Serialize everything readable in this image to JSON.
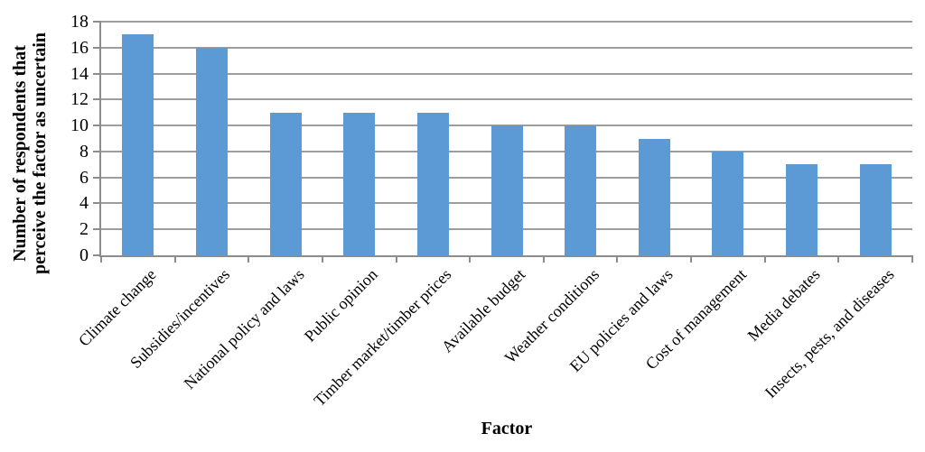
{
  "chart_data": {
    "type": "bar",
    "title": "",
    "xlabel": "Factor",
    "ylabel": "Number of respondents that perceive the factor as uncertain",
    "ylabel_lines": [
      "Number of respondents that",
      "perceive the factor as uncertain"
    ],
    "categories": [
      "Climate change",
      "Subsidies/incentives",
      "National policy and laws",
      "Public opinion",
      "Timber market/timber prices",
      "Available budget",
      "Weather conditions",
      "EU policies and laws",
      "Cost of management",
      "Media debates",
      "Insects, pests, and diseases"
    ],
    "values": [
      17,
      16,
      11,
      11,
      11,
      10,
      10,
      9,
      8,
      7,
      7
    ],
    "ylim": [
      0,
      18
    ],
    "yticks": [
      0,
      2,
      4,
      6,
      8,
      10,
      12,
      14,
      16,
      18
    ],
    "grid": true,
    "legend": false,
    "bar_color": "#5B9AD5",
    "gridline_color": "#9D9D9D",
    "axis_color": "#8C8C8C",
    "text_color": "#000000"
  }
}
